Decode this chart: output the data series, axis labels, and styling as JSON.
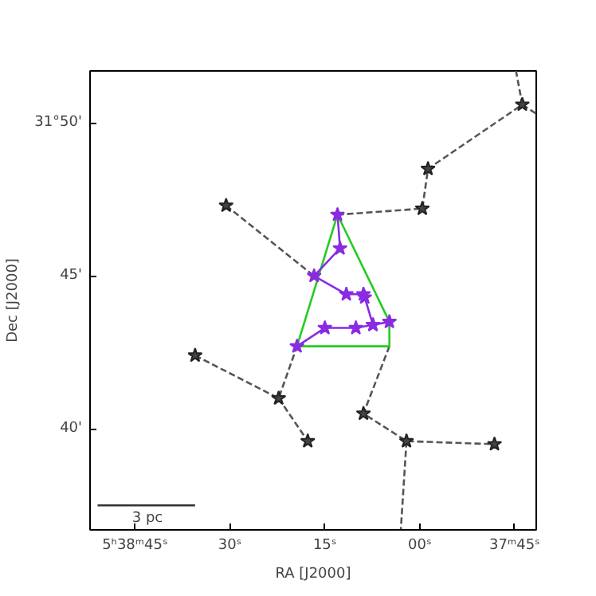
{
  "chart_data": {
    "type": "line",
    "xlabel": "RA [J2000]",
    "ylabel": "Dec [J2000]",
    "xlim": [
      52.1,
      -18.4
    ],
    "ylim": [
      36.7,
      51.7
    ],
    "xticks": [
      {
        "value": 45,
        "label": "5ʰ38ᵐ45ˢ"
      },
      {
        "value": 30,
        "label": "30ˢ"
      },
      {
        "value": 15,
        "label": "15ˢ"
      },
      {
        "value": 0,
        "label": "00ˢ"
      },
      {
        "value": -15,
        "label": "37ᵐ45ˢ"
      }
    ],
    "yticks": [
      {
        "value": 50,
        "label": "31°50'"
      },
      {
        "value": 45,
        "label": "45'"
      },
      {
        "value": 40,
        "label": "40'"
      }
    ],
    "grid": false,
    "series": [
      {
        "color": "#555555",
        "line_style": "dashed",
        "marker": "none",
        "x": [
          30.6,
          16.7,
          null,
          13.0,
          -0.4,
          -1.3,
          -16.2,
          -15.2,
          null,
          -16.2,
          -18.4,
          null,
          35.5,
          22.3,
          19.4,
          null,
          22.3,
          17.7,
          null,
          4.8,
          8.9,
          2.1,
          -11.8,
          null,
          2.1,
          3.0
        ],
        "values": [
          47.3,
          45.0,
          null,
          47.0,
          47.2,
          48.5,
          50.6,
          51.7,
          null,
          50.6,
          50.3,
          null,
          42.4,
          41.0,
          42.7,
          null,
          41.0,
          39.6,
          null,
          42.7,
          40.5,
          39.6,
          39.5,
          null,
          39.6,
          36.7
        ]
      },
      {
        "color": "#22cc22",
        "line_style": "solid",
        "marker": "none",
        "x": [
          13.0,
          19.4,
          null,
          19.4,
          4.8,
          4.8,
          null,
          4.8,
          13.0
        ],
        "values": [
          47.0,
          42.7,
          null,
          42.7,
          42.7,
          43.5,
          null,
          43.5,
          47.0
        ]
      },
      {
        "color": "#8a2be2",
        "line_style": "solid",
        "marker": "star",
        "x": [
          13.0,
          12.6,
          16.7,
          11.6,
          8.9,
          8.7,
          7.4,
          4.8,
          null,
          7.4,
          10.1,
          15.0,
          19.4
        ],
        "values": [
          47.0,
          45.9,
          45.0,
          44.4,
          44.4,
          44.3,
          43.4,
          43.5,
          null,
          43.4,
          43.3,
          43.3,
          42.7
        ]
      },
      {
        "type": "scatter",
        "color": "#444444",
        "marker": "star",
        "x": [
          30.6,
          -0.4,
          -1.3,
          -16.2,
          35.5,
          22.3,
          17.7,
          8.9,
          2.1,
          -11.8
        ],
        "values": [
          47.3,
          47.2,
          48.5,
          50.6,
          42.4,
          41.0,
          39.6,
          40.5,
          39.6,
          39.5
        ]
      },
      {
        "color": "#333333",
        "line_style": "solid",
        "marker": "none",
        "x": [
          50.9,
          35.5
        ],
        "values": [
          37.5,
          37.5
        ]
      }
    ],
    "annotations": [
      "3 pc"
    ]
  }
}
